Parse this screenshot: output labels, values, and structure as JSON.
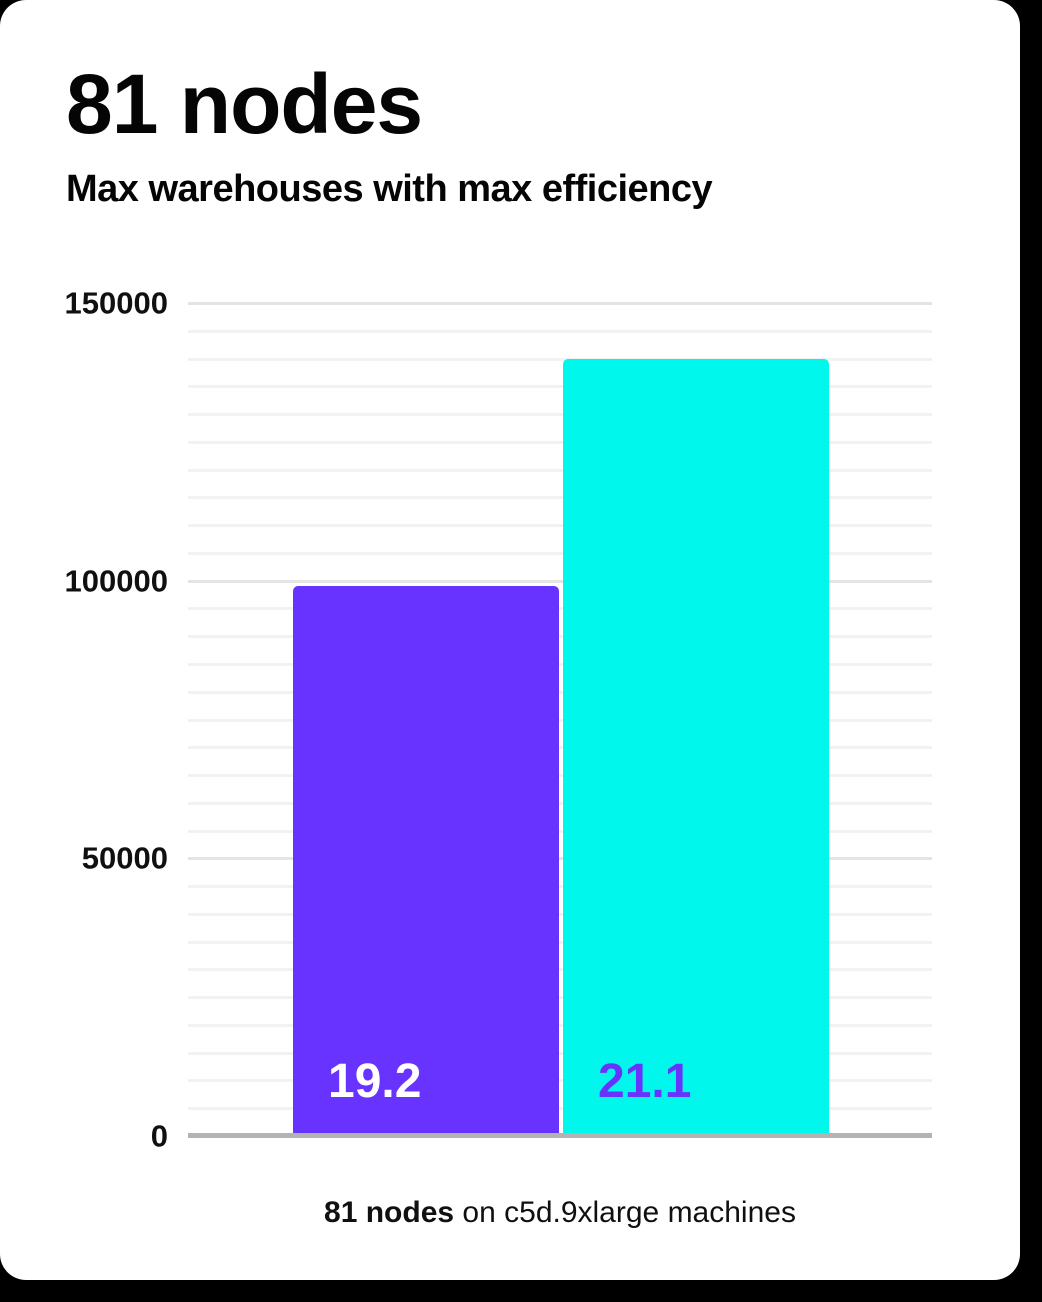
{
  "page": {
    "background_color": "#000000",
    "card_color": "#ffffff"
  },
  "header": {
    "title": "81 nodes",
    "subtitle": "Max warehouses with max efficiency"
  },
  "caption": {
    "bold": "81 nodes",
    "rest": " on c5d.9xlarge machines"
  },
  "chart_data": {
    "type": "bar",
    "title": "81 nodes",
    "subtitle": "Max warehouses with max efficiency",
    "categories": [
      "19.2",
      "21.1"
    ],
    "bars": [
      {
        "label": "19.2",
        "value": 99000,
        "color": "#6933ff",
        "label_color": "#ffffff"
      },
      {
        "label": "21.1",
        "value": 140000,
        "color": "#00f7eb",
        "label_color": "#6933ff"
      }
    ],
    "xlabel": "81 nodes on c5d.9xlarge machines",
    "ylabel": "",
    "ylim": [
      0,
      150000
    ],
    "yticks": [
      150000,
      100000,
      50000,
      0
    ],
    "minor_grid_step": 5000,
    "major_grid_step": 50000,
    "grid": true,
    "legend_position": "none",
    "baseline_color": "#b3b3b3",
    "minor_grid_color": "#f2f2f2",
    "major_grid_color": "#e4e4e4"
  }
}
